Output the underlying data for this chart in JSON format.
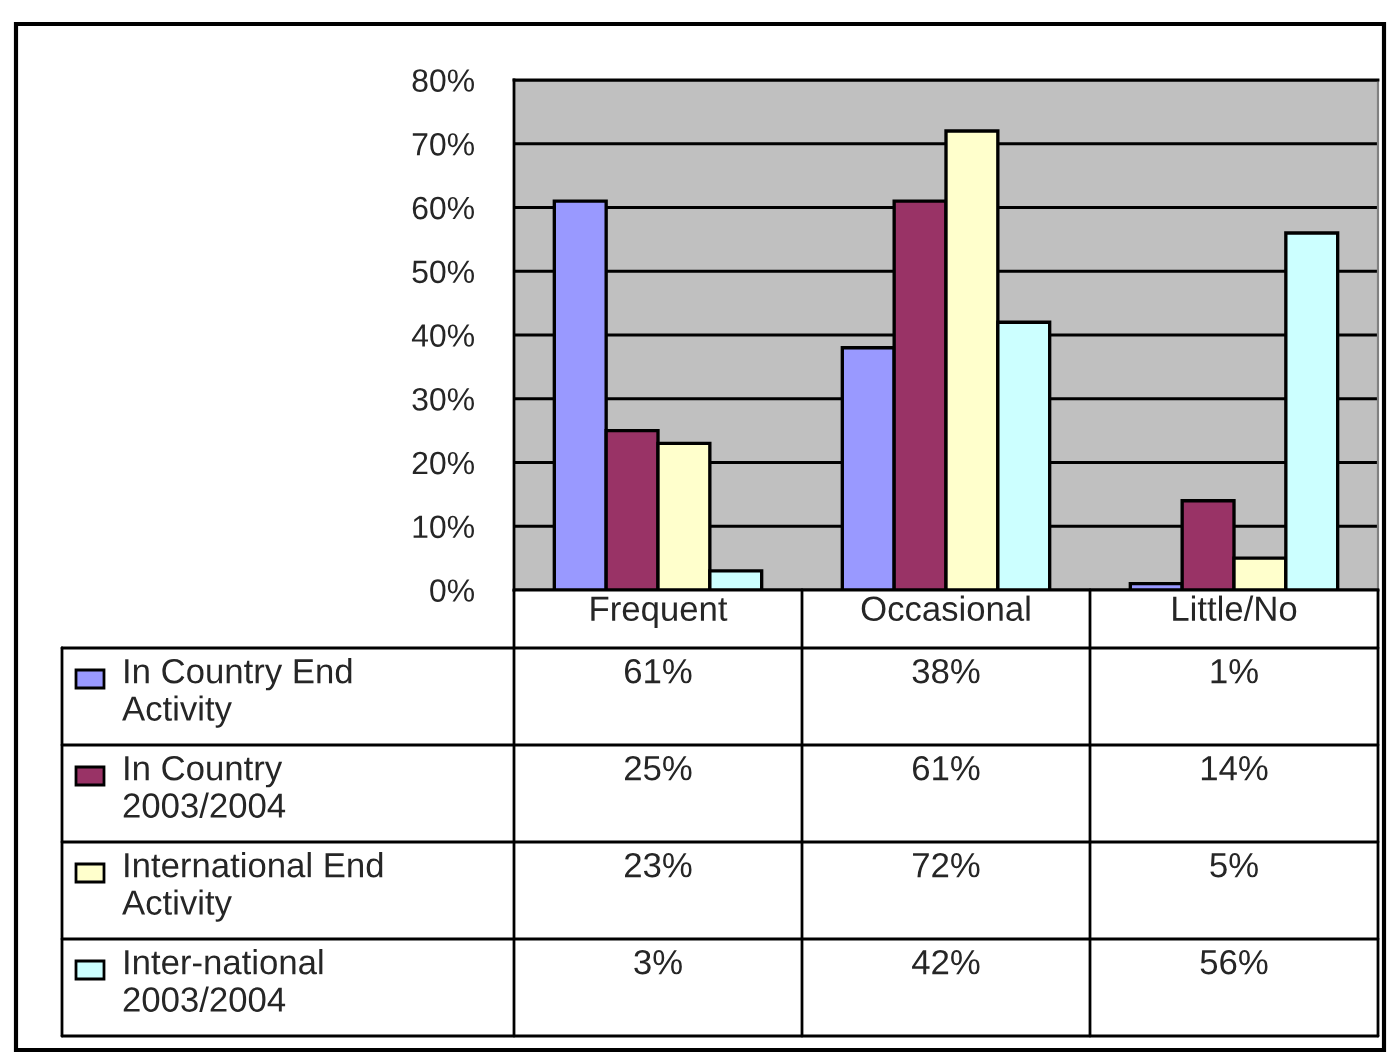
{
  "chart_data": {
    "type": "bar",
    "categories": [
      "Frequent",
      "Occasional",
      "Little/No"
    ],
    "series": [
      {
        "name": "In Country End Activity",
        "color": "#9999ff",
        "values": [
          61,
          38,
          1
        ],
        "value_labels": [
          "61%",
          "38%",
          "1%"
        ]
      },
      {
        "name": "In Country 2003/2004",
        "color": "#993366",
        "values": [
          25,
          61,
          14
        ],
        "value_labels": [
          "25%",
          "61%",
          "14%"
        ]
      },
      {
        "name": "International End Activity",
        "color": "#ffffcc",
        "values": [
          23,
          72,
          5
        ],
        "value_labels": [
          "23%",
          "72%",
          "5%"
        ]
      },
      {
        "name": "Inter-national 2003/2004",
        "color": "#ccffff",
        "values": [
          3,
          42,
          56
        ],
        "value_labels": [
          "3%",
          "42%",
          "56%"
        ]
      }
    ],
    "ylim": [
      0,
      80
    ],
    "yticks": [
      {
        "value": 0,
        "label": "0%"
      },
      {
        "value": 10,
        "label": "10%"
      },
      {
        "value": 20,
        "label": "20%"
      },
      {
        "value": 30,
        "label": "30%"
      },
      {
        "value": 40,
        "label": "40%"
      },
      {
        "value": 50,
        "label": "50%"
      },
      {
        "value": 60,
        "label": "60%"
      },
      {
        "value": 70,
        "label": "70%"
      },
      {
        "value": 80,
        "label": "80%"
      }
    ],
    "grid": "y",
    "legend": "bottom"
  }
}
